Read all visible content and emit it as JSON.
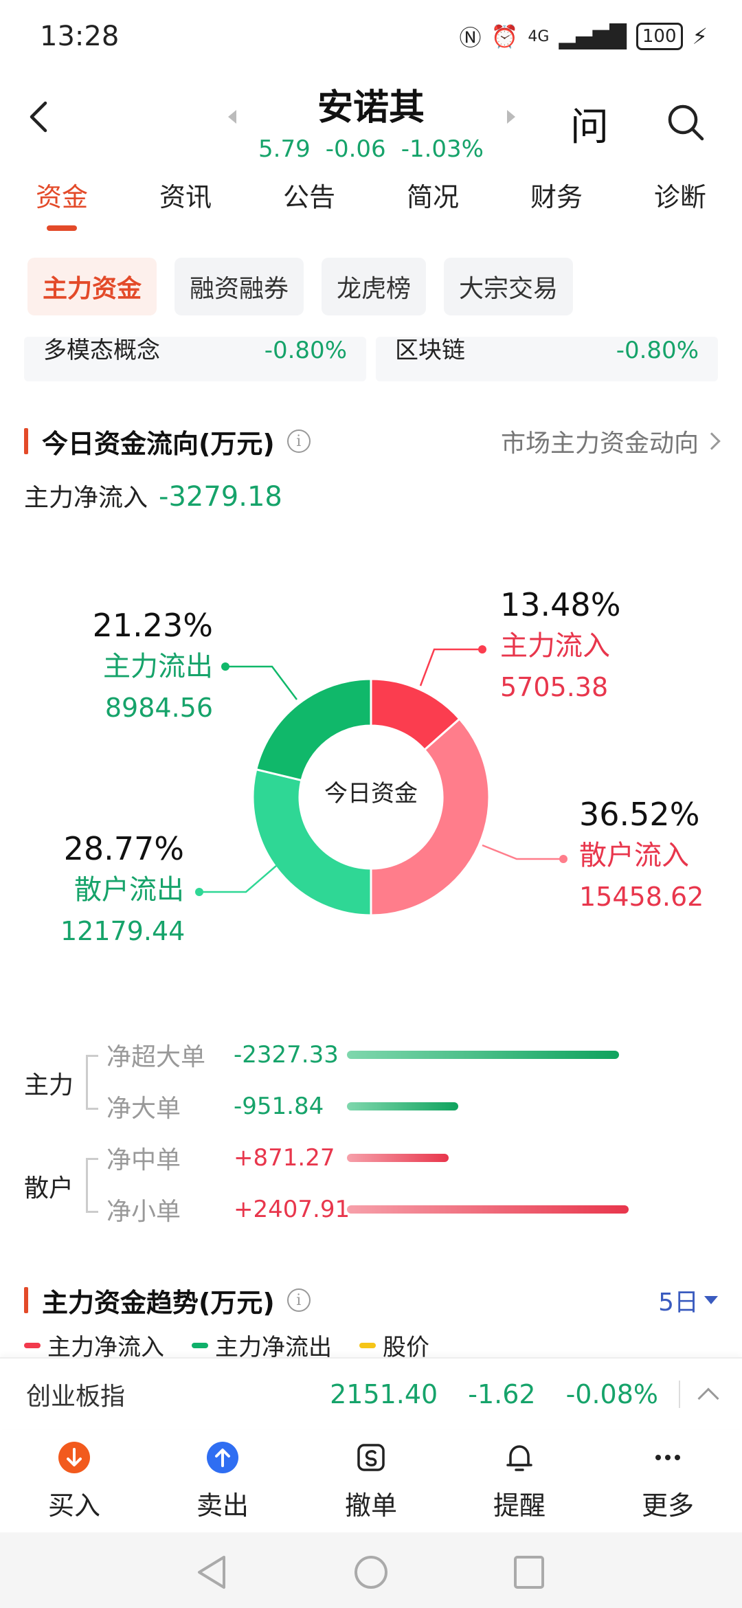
{
  "status_bar": {
    "time": "13:28",
    "network": "4G",
    "battery": "100"
  },
  "header": {
    "stock_name": "安诺其",
    "price": "5.79",
    "change": "-0.06",
    "change_pct": "-1.03%",
    "ask_label": "问"
  },
  "tabs": [
    {
      "label": "资金"
    },
    {
      "label": "资讯"
    },
    {
      "label": "公告"
    },
    {
      "label": "简况"
    },
    {
      "label": "财务"
    },
    {
      "label": "诊断"
    }
  ],
  "subtabs": [
    {
      "label": "主力资金"
    },
    {
      "label": "融资融券"
    },
    {
      "label": "龙虎榜"
    },
    {
      "label": "大宗交易"
    }
  ],
  "concepts": [
    {
      "name": "多模态概念",
      "pct": "-0.80%"
    },
    {
      "name": "区块链",
      "pct": "-0.80%"
    }
  ],
  "today_flow": {
    "title": "今日资金流向(万元)",
    "market_link": "市场主力资金动向",
    "net_inflow_label": "主力净流入",
    "net_inflow_value": "-3279.18",
    "center_label": "今日资金"
  },
  "chart_data": {
    "type": "pie",
    "center_label": "今日资金",
    "slices": [
      {
        "name": "主力流入",
        "pct": "13.48%",
        "value": "5705.38",
        "fraction": 0.1348,
        "color": "#fb3d4f"
      },
      {
        "name": "散户流入",
        "pct": "36.52%",
        "value": "15458.62",
        "fraction": 0.3652,
        "color": "#ff7d8b"
      },
      {
        "name": "散户流出",
        "pct": "28.77%",
        "value": "12179.44",
        "fraction": 0.2877,
        "color": "#2fd795"
      },
      {
        "name": "主力流出",
        "pct": "21.23%",
        "value": "8984.56",
        "fraction": 0.2123,
        "color": "#10b86a"
      }
    ]
  },
  "breakdown": {
    "groups": [
      {
        "label": "主力"
      },
      {
        "label": "散户"
      }
    ],
    "rows": [
      {
        "label": "净超大单",
        "value": "-2327.33",
        "amount": -2327.33
      },
      {
        "label": "净大单",
        "value": "-951.84",
        "amount": -951.84
      },
      {
        "label": "净中单",
        "value": "+871.27",
        "amount": 871.27
      },
      {
        "label": "净小单",
        "value": "+2407.91",
        "amount": 2407.91
      }
    ]
  },
  "trend": {
    "title": "主力资金趋势(万元)",
    "period": "5日",
    "legend": [
      {
        "label": "主力净流入",
        "color": "#f23a4d"
      },
      {
        "label": "主力净流出",
        "color": "#0fb06a"
      },
      {
        "label": "股价",
        "color": "#f5c518"
      }
    ]
  },
  "index_bar": {
    "name": "创业板指",
    "value": "2151.40",
    "change": "-1.62",
    "change_pct": "-0.08%"
  },
  "actions": [
    {
      "label": "买入",
      "icon": "buy-icon",
      "color": "#f25a1d"
    },
    {
      "label": "卖出",
      "icon": "sell-icon",
      "color": "#2f6ef2"
    },
    {
      "label": "撤单",
      "icon": "cancel-order-icon"
    },
    {
      "label": "提醒",
      "icon": "bell-icon"
    },
    {
      "label": "更多",
      "icon": "more-icon"
    }
  ]
}
